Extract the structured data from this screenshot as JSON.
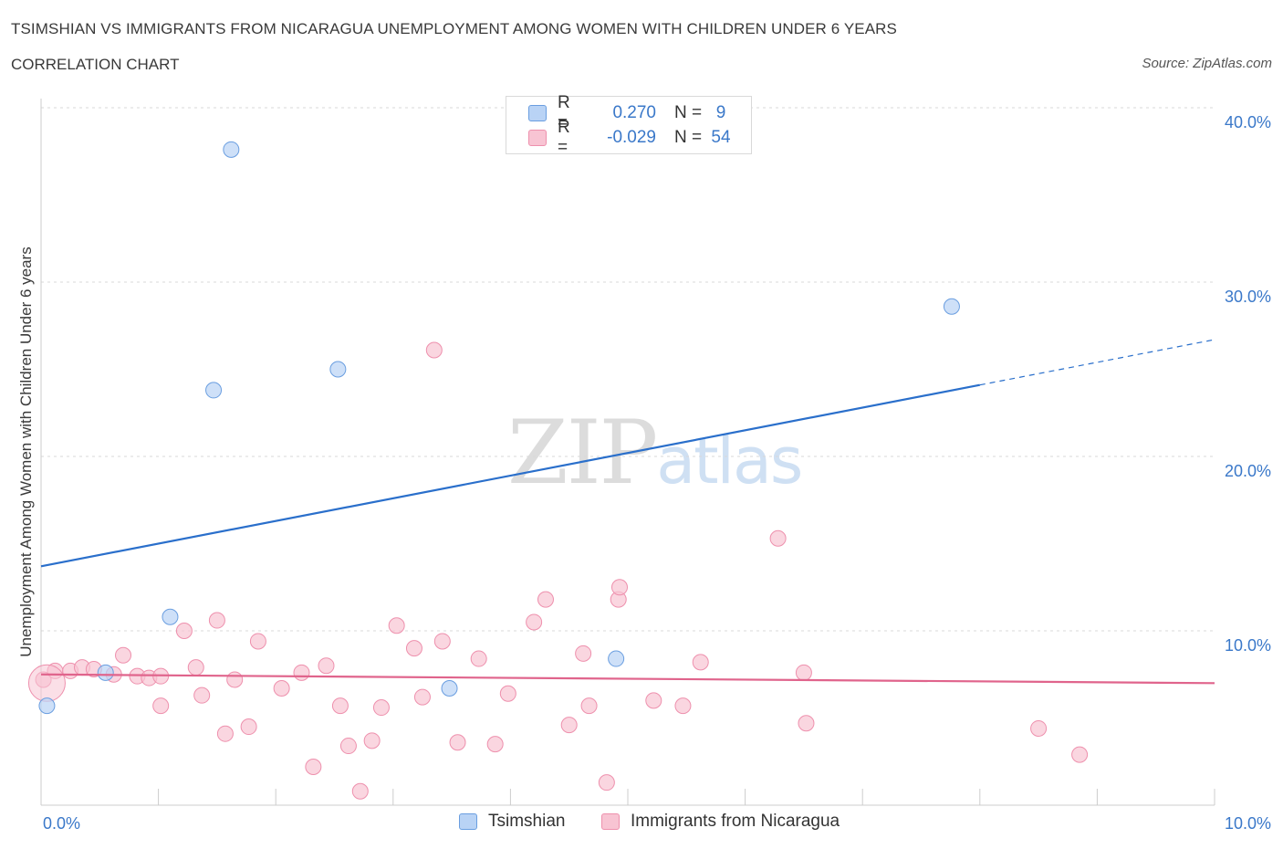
{
  "header": {
    "title": "TSIMSHIAN VS IMMIGRANTS FROM NICARAGUA UNEMPLOYMENT AMONG WOMEN WITH CHILDREN UNDER 6 YEARS",
    "subtitle": "CORRELATION CHART",
    "source": "Source: ZipAtlas.com"
  },
  "watermark": {
    "zip": "ZIP",
    "atlas": "atlas"
  },
  "colors": {
    "tsimshian_fill": "#b9d3f5",
    "tsimshian_stroke": "#6a9ee0",
    "tsimshian_line": "#2a6fcb",
    "nicaragua_fill": "#f8c4d3",
    "nicaragua_stroke": "#ee90ad",
    "nicaragua_line": "#e0648c",
    "tick_label": "#3a78c9",
    "grid": "#d9d9d9"
  },
  "legend_top": {
    "rows": [
      {
        "r_label": "R =",
        "r_value": "0.270",
        "n_label": "N =",
        "n_value": "9"
      },
      {
        "r_label": "R =",
        "r_value": "-0.029",
        "n_label": "N =",
        "n_value": "54"
      }
    ]
  },
  "legend_bottom": {
    "items": [
      {
        "label": "Tsimshian"
      },
      {
        "label": "Immigrants from Nicaragua"
      }
    ]
  },
  "chart_data": {
    "type": "scatter",
    "title": "TSIMSHIAN VS IMMIGRANTS FROM NICARAGUA UNEMPLOYMENT AMONG WOMEN WITH CHILDREN UNDER 6 YEARS",
    "xlabel": "",
    "ylabel": "Unemployment Among Women with Children Under 6 years",
    "xlim": [
      0,
      10
    ],
    "ylim": [
      0,
      40
    ],
    "x_tick_labels": [
      "0.0%",
      "10.0%"
    ],
    "y_tick_labels": [
      "10.0%",
      "20.0%",
      "30.0%",
      "40.0%"
    ],
    "y_ticks": [
      10,
      20,
      30,
      40
    ],
    "grid": true,
    "legend_position": "top-center",
    "series": [
      {
        "name": "Tsimshian",
        "R": 0.27,
        "N": 9,
        "points": [
          [
            0.05,
            5.7
          ],
          [
            0.55,
            7.6
          ],
          [
            1.1,
            10.8
          ],
          [
            1.47,
            23.8
          ],
          [
            1.62,
            37.6
          ],
          [
            2.53,
            25.0
          ],
          [
            3.48,
            6.7
          ],
          [
            4.9,
            8.4
          ],
          [
            7.76,
            28.6
          ]
        ],
        "trend": {
          "x0": 0,
          "y0": 13.7,
          "x1": 8.0,
          "y1": 24.1,
          "dash_x1": 10,
          "dash_y1": 26.7
        }
      },
      {
        "name": "Immigrants from Nicaragua",
        "R": -0.029,
        "N": 54,
        "points": [
          [
            0.02,
            7.2
          ],
          [
            0.12,
            7.7
          ],
          [
            0.25,
            7.7
          ],
          [
            0.35,
            7.9
          ],
          [
            0.45,
            7.8
          ],
          [
            0.62,
            7.5
          ],
          [
            0.7,
            8.6
          ],
          [
            0.82,
            7.4
          ],
          [
            0.92,
            7.3
          ],
          [
            1.02,
            7.4
          ],
          [
            1.02,
            5.7
          ],
          [
            1.22,
            10.0
          ],
          [
            1.32,
            7.9
          ],
          [
            1.37,
            6.3
          ],
          [
            1.5,
            10.6
          ],
          [
            1.57,
            4.1
          ],
          [
            1.65,
            7.2
          ],
          [
            1.77,
            4.5
          ],
          [
            1.85,
            9.4
          ],
          [
            2.05,
            6.7
          ],
          [
            2.22,
            7.6
          ],
          [
            2.32,
            2.2
          ],
          [
            2.43,
            8.0
          ],
          [
            2.55,
            5.7
          ],
          [
            2.62,
            3.4
          ],
          [
            2.72,
            0.8
          ],
          [
            2.82,
            3.7
          ],
          [
            2.9,
            5.6
          ],
          [
            3.03,
            10.3
          ],
          [
            3.18,
            9.0
          ],
          [
            3.25,
            6.2
          ],
          [
            3.35,
            26.1
          ],
          [
            3.42,
            9.4
          ],
          [
            3.55,
            3.6
          ],
          [
            3.73,
            8.4
          ],
          [
            3.87,
            3.5
          ],
          [
            3.98,
            6.4
          ],
          [
            4.2,
            10.5
          ],
          [
            4.3,
            11.8
          ],
          [
            4.5,
            4.6
          ],
          [
            4.62,
            8.7
          ],
          [
            4.67,
            5.7
          ],
          [
            4.82,
            1.3
          ],
          [
            4.92,
            11.8
          ],
          [
            4.93,
            12.5
          ],
          [
            5.22,
            6.0
          ],
          [
            5.47,
            5.7
          ],
          [
            5.62,
            8.2
          ],
          [
            6.28,
            15.3
          ],
          [
            6.5,
            7.6
          ],
          [
            6.52,
            4.7
          ],
          [
            8.5,
            4.4
          ],
          [
            8.85,
            2.9
          ],
          [
            0.05,
            7.0
          ]
        ],
        "trend": {
          "x0": 0,
          "y0": 7.5,
          "x1": 10,
          "y1": 7.0
        }
      }
    ]
  }
}
